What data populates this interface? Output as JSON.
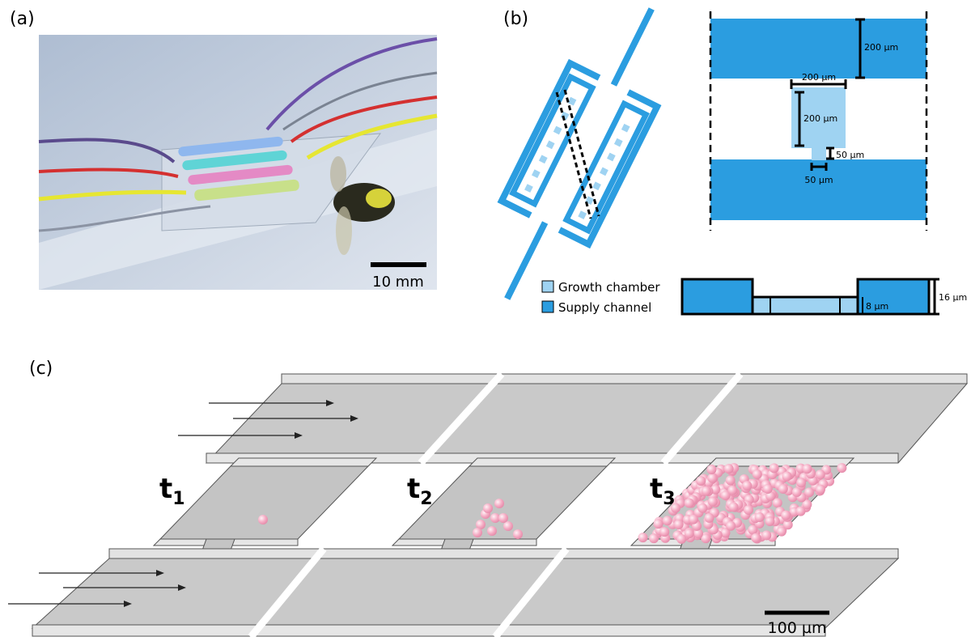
{
  "panels": {
    "a": {
      "label": "(a)",
      "scale_bar": "10 mm"
    },
    "b": {
      "label": "(b)",
      "dimensions": {
        "supply_width": "200 µm",
        "chamber_width": "200 µm",
        "chamber_length": "200 µm",
        "outlet_length": "50 µm",
        "outlet_width": "50 µm",
        "channel_height": "16 µm",
        "chamber_height": "8 µm"
      },
      "legend": [
        "Growth chamber",
        "Supply channel"
      ]
    },
    "c": {
      "label": "(c)",
      "time_points": [
        {
          "symbol": "t",
          "subscript": "1"
        },
        {
          "symbol": "t",
          "subscript": "2"
        },
        {
          "symbol": "t",
          "subscript": "3"
        }
      ],
      "scale_bar": "100 µm"
    }
  }
}
